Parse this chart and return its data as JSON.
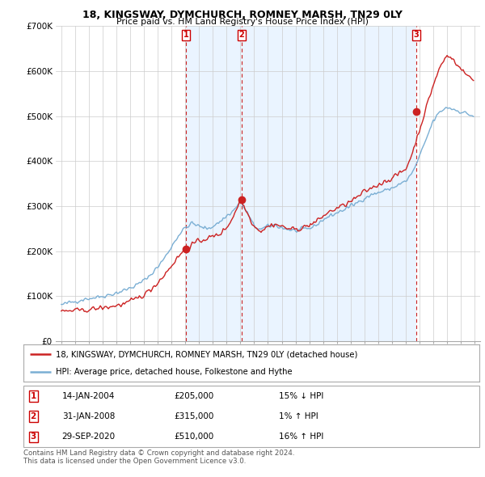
{
  "title": "18, KINGSWAY, DYMCHURCH, ROMNEY MARSH, TN29 0LY",
  "subtitle": "Price paid vs. HM Land Registry's House Price Index (HPI)",
  "legend_line1": "18, KINGSWAY, DYMCHURCH, ROMNEY MARSH, TN29 0LY (detached house)",
  "legend_line2": "HPI: Average price, detached house, Folkestone and Hythe",
  "footer1": "Contains HM Land Registry data © Crown copyright and database right 2024.",
  "footer2": "This data is licensed under the Open Government Licence v3.0.",
  "sales": [
    {
      "num": 1,
      "date": "14-JAN-2004",
      "price": "£205,000",
      "hpi": "15% ↓ HPI",
      "year": 2004.04
    },
    {
      "num": 2,
      "date": "31-JAN-2008",
      "price": "£315,000",
      "hpi": "1% ↑ HPI",
      "year": 2008.08
    },
    {
      "num": 3,
      "date": "29-SEP-2020",
      "price": "£510,000",
      "hpi": "16% ↑ HPI",
      "year": 2020.75
    }
  ],
  "sale_prices": [
    205000,
    315000,
    510000
  ],
  "hpi_color": "#7bafd4",
  "price_color": "#cc2222",
  "sale_marker_color": "#cc2222",
  "vline_color": "#cc2222",
  "shade_color": "#ddeeff",
  "grid_color": "#cccccc",
  "bg_color": "#ffffff",
  "ylim": [
    0,
    700000
  ],
  "yticks": [
    0,
    100000,
    200000,
    300000,
    400000,
    500000,
    600000,
    700000
  ],
  "ytick_labels": [
    "£0",
    "£100K",
    "£200K",
    "£300K",
    "£400K",
    "£500K",
    "£600K",
    "£700K"
  ],
  "hpi_keypoints": [
    [
      1995.0,
      80000
    ],
    [
      1995.5,
      85000
    ],
    [
      1996.0,
      88000
    ],
    [
      1996.5,
      92000
    ],
    [
      1997.0,
      95000
    ],
    [
      1997.5,
      97000
    ],
    [
      1998.0,
      100000
    ],
    [
      1998.5,
      103000
    ],
    [
      1999.0,
      107000
    ],
    [
      1999.5,
      112000
    ],
    [
      2000.0,
      118000
    ],
    [
      2000.5,
      125000
    ],
    [
      2001.0,
      135000
    ],
    [
      2001.5,
      148000
    ],
    [
      2002.0,
      165000
    ],
    [
      2002.5,
      185000
    ],
    [
      2003.0,
      210000
    ],
    [
      2003.5,
      235000
    ],
    [
      2004.0,
      252000
    ],
    [
      2004.5,
      262000
    ],
    [
      2005.0,
      255000
    ],
    [
      2005.5,
      250000
    ],
    [
      2006.0,
      255000
    ],
    [
      2006.5,
      265000
    ],
    [
      2007.0,
      278000
    ],
    [
      2007.5,
      290000
    ],
    [
      2008.0,
      310000
    ],
    [
      2008.5,
      285000
    ],
    [
      2009.0,
      255000
    ],
    [
      2009.5,
      248000
    ],
    [
      2010.0,
      255000
    ],
    [
      2010.5,
      258000
    ],
    [
      2011.0,
      252000
    ],
    [
      2011.5,
      248000
    ],
    [
      2012.0,
      245000
    ],
    [
      2012.5,
      248000
    ],
    [
      2013.0,
      250000
    ],
    [
      2013.5,
      258000
    ],
    [
      2014.0,
      270000
    ],
    [
      2014.5,
      278000
    ],
    [
      2015.0,
      285000
    ],
    [
      2015.5,
      292000
    ],
    [
      2016.0,
      300000
    ],
    [
      2016.5,
      308000
    ],
    [
      2017.0,
      318000
    ],
    [
      2017.5,
      325000
    ],
    [
      2018.0,
      330000
    ],
    [
      2018.5,
      335000
    ],
    [
      2019.0,
      340000
    ],
    [
      2019.5,
      348000
    ],
    [
      2020.0,
      355000
    ],
    [
      2020.5,
      375000
    ],
    [
      2021.0,
      410000
    ],
    [
      2021.5,
      450000
    ],
    [
      2022.0,
      490000
    ],
    [
      2022.5,
      510000
    ],
    [
      2023.0,
      520000
    ],
    [
      2023.5,
      515000
    ],
    [
      2024.0,
      510000
    ],
    [
      2024.5,
      505000
    ],
    [
      2024.9,
      500000
    ]
  ],
  "price_keypoints": [
    [
      1995.0,
      65000
    ],
    [
      1995.5,
      67000
    ],
    [
      1996.0,
      68000
    ],
    [
      1996.5,
      68000
    ],
    [
      1997.0,
      70000
    ],
    [
      1997.5,
      72000
    ],
    [
      1998.0,
      74000
    ],
    [
      1998.5,
      76000
    ],
    [
      1999.0,
      79000
    ],
    [
      1999.5,
      82000
    ],
    [
      2000.0,
      88000
    ],
    [
      2000.5,
      95000
    ],
    [
      2001.0,
      103000
    ],
    [
      2001.5,
      115000
    ],
    [
      2002.0,
      130000
    ],
    [
      2002.5,
      148000
    ],
    [
      2003.0,
      168000
    ],
    [
      2003.5,
      188000
    ],
    [
      2004.0,
      205000
    ],
    [
      2004.5,
      215000
    ],
    [
      2005.0,
      222000
    ],
    [
      2005.5,
      228000
    ],
    [
      2006.0,
      232000
    ],
    [
      2006.5,
      238000
    ],
    [
      2007.0,
      252000
    ],
    [
      2007.5,
      278000
    ],
    [
      2008.0,
      315000
    ],
    [
      2008.5,
      285000
    ],
    [
      2009.0,
      255000
    ],
    [
      2009.5,
      245000
    ],
    [
      2010.0,
      255000
    ],
    [
      2010.5,
      260000
    ],
    [
      2011.0,
      255000
    ],
    [
      2011.5,
      250000
    ],
    [
      2012.0,
      248000
    ],
    [
      2012.5,
      252000
    ],
    [
      2013.0,
      258000
    ],
    [
      2013.5,
      265000
    ],
    [
      2014.0,
      278000
    ],
    [
      2014.5,
      288000
    ],
    [
      2015.0,
      295000
    ],
    [
      2015.5,
      302000
    ],
    [
      2016.0,
      310000
    ],
    [
      2016.5,
      320000
    ],
    [
      2017.0,
      332000
    ],
    [
      2017.5,
      340000
    ],
    [
      2018.0,
      348000
    ],
    [
      2018.5,
      355000
    ],
    [
      2019.0,
      362000
    ],
    [
      2019.5,
      372000
    ],
    [
      2020.0,
      382000
    ],
    [
      2020.5,
      420000
    ],
    [
      2021.0,
      470000
    ],
    [
      2021.5,
      520000
    ],
    [
      2022.0,
      570000
    ],
    [
      2022.5,
      610000
    ],
    [
      2023.0,
      635000
    ],
    [
      2023.5,
      625000
    ],
    [
      2024.0,
      605000
    ],
    [
      2024.5,
      590000
    ],
    [
      2024.9,
      580000
    ]
  ]
}
